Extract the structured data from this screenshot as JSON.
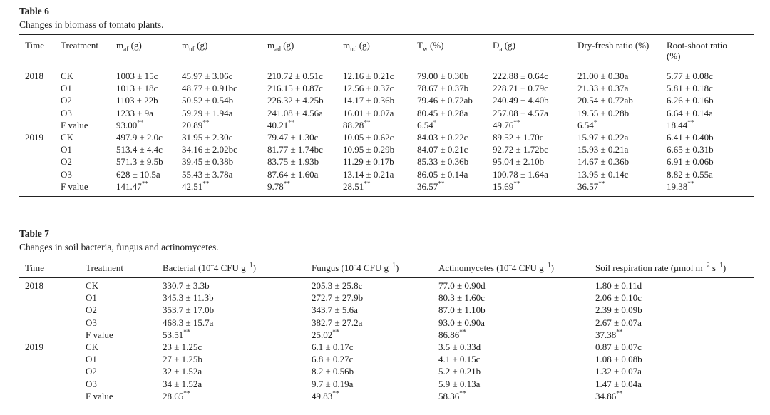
{
  "page": {
    "background_color": "#ffffff",
    "text_color": "#1d1d1d",
    "rule_color": "#222222"
  },
  "table6": {
    "title": "Table 6",
    "caption": "Changes in biomass of tomato plants.",
    "columns": [
      "Time",
      "Treatment",
      "m_{af} (g)",
      "m_{uf} (g)",
      "m_{ad} (g)",
      "m_{ud} (g)",
      "T_{w} (%)",
      "D_{a} (g)",
      "Dry-fresh ratio (%)",
      "Root-shoot ratio (%)"
    ],
    "rows": [
      [
        "2018",
        "CK",
        "1003 ± 15c",
        "45.97 ± 3.06c",
        "210.72 ± 0.51c",
        "12.16 ± 0.21c",
        "79.00 ± 0.30b",
        "222.88 ± 0.64c",
        "21.00 ± 0.30a",
        "5.77 ± 0.08c"
      ],
      [
        "",
        "O1",
        "1013 ± 18c",
        "48.77 ± 0.91bc",
        "216.15 ± 0.87c",
        "12.56 ± 0.37c",
        "78.67 ± 0.37b",
        "228.71 ± 0.79c",
        "21.33 ± 0.37a",
        "5.81 ± 0.18c"
      ],
      [
        "",
        "O2",
        "1103 ± 22b",
        "50.52 ± 0.54b",
        "226.32 ± 4.25b",
        "14.17 ± 0.36b",
        "79.46 ± 0.72ab",
        "240.49 ± 4.40b",
        "20.54 ± 0.72ab",
        "6.26 ± 0.16b"
      ],
      [
        "",
        "O3",
        "1233 ± 9a",
        "59.29 ± 1.94a",
        "241.08 ± 4.56a",
        "16.01 ± 0.07a",
        "80.45 ± 0.28a",
        "257.08 ± 4.57a",
        "19.55 ± 0.28b",
        "6.64 ± 0.14a"
      ],
      [
        "",
        "F value",
        "93.00^{**}",
        "20.89^{**}",
        "40.21^{**}",
        "88.28^{**}",
        "6.54^{*}",
        "49.76^{**}",
        "6.54^{*}",
        "18.44^{**}"
      ],
      [
        "2019",
        "CK",
        "497.9 ± 2.0c",
        "31.95 ± 2.30c",
        "79.47 ± 1.30c",
        "10.05 ± 0.62c",
        "84.03 ± 0.22c",
        "89.52 ± 1.70c",
        "15.97 ± 0.22a",
        "6.41 ± 0.40b"
      ],
      [
        "",
        "O1",
        "513.4 ± 4.4c",
        "34.16 ± 2.02bc",
        "81.77 ± 1.74bc",
        "10.95 ± 0.29b",
        "84.07 ± 0.21c",
        "92.72 ± 1.72bc",
        "15.93 ± 0.21a",
        "6.65 ± 0.31b"
      ],
      [
        "",
        "O2",
        "571.3 ± 9.5b",
        "39.45 ± 0.38b",
        "83.75 ± 1.93b",
        "11.29 ± 0.17b",
        "85.33 ± 0.36b",
        "95.04 ± 2.10b",
        "14.67 ± 0.36b",
        "6.91 ± 0.06b"
      ],
      [
        "",
        "O3",
        "628 ± 10.5a",
        "55.43 ± 3.78a",
        "87.64 ± 1.60a",
        "13.14 ± 0.21a",
        "86.05 ± 0.14a",
        "100.78 ± 1.64a",
        "13.95 ± 0.14c",
        "8.82 ± 0.55a"
      ],
      [
        "",
        "F value",
        "141.47^{**}",
        "42.51^{**}",
        "9.78^{**}",
        "28.51^{**}",
        "36.57^{**}",
        "15.69^{**}",
        "36.57^{**}",
        "19.38^{**}"
      ]
    ]
  },
  "table7": {
    "title": "Table 7",
    "caption": "Changes in soil bacteria, fungus and actinomycetes.",
    "columns": [
      "Time",
      "Treatment",
      "Bacterial (10ˆ4 CFU g^{−1})",
      "Fungus (10ˆ4 CFU g^{−1})",
      "Actinomycetes (10ˆ4 CFU g^{−1})",
      "Soil respiration rate (μmol m^{−2} s^{−1})"
    ],
    "rows": [
      [
        "2018",
        "CK",
        "330.7 ± 3.3b",
        "205.3 ± 25.8c",
        "77.0 ± 0.90d",
        "1.80 ± 0.11d"
      ],
      [
        "",
        "O1",
        "345.3 ± 11.3b",
        "272.7 ± 27.9b",
        "80.3 ± 1.60c",
        "2.06 ± 0.10c"
      ],
      [
        "",
        "O2",
        "353.7 ± 17.0b",
        "343.7 ± 5.6a",
        "87.0 ± 1.10b",
        "2.39 ± 0.09b"
      ],
      [
        "",
        "O3",
        "468.3 ± 15.7a",
        "382.7 ± 27.2a",
        "93.0 ± 0.90a",
        "2.67 ± 0.07a"
      ],
      [
        "",
        "F value",
        "53.51^{**}",
        "25.02^{**}",
        "86.86^{**}",
        "37.38^{**}"
      ],
      [
        "2019",
        "CK",
        "23 ± 1.25c",
        "6.1 ± 0.17c",
        "3.5 ± 0.33d",
        "0.87 ± 0.07c"
      ],
      [
        "",
        "O1",
        "27 ± 1.25b",
        "6.8 ± 0.27c",
        "4.1 ± 0.15c",
        "1.08 ± 0.08b"
      ],
      [
        "",
        "O2",
        "32 ± 1.52a",
        "8.2 ± 0.56b",
        "5.2 ± 0.21b",
        "1.32 ± 0.07a"
      ],
      [
        "",
        "O3",
        "34 ± 1.52a",
        "9.7 ± 0.19a",
        "5.9 ± 0.13a",
        "1.47 ± 0.04a"
      ],
      [
        "",
        "F value",
        "28.65^{**}",
        "49.83^{**}",
        "58.36^{**}",
        "34.86^{**}"
      ]
    ]
  }
}
